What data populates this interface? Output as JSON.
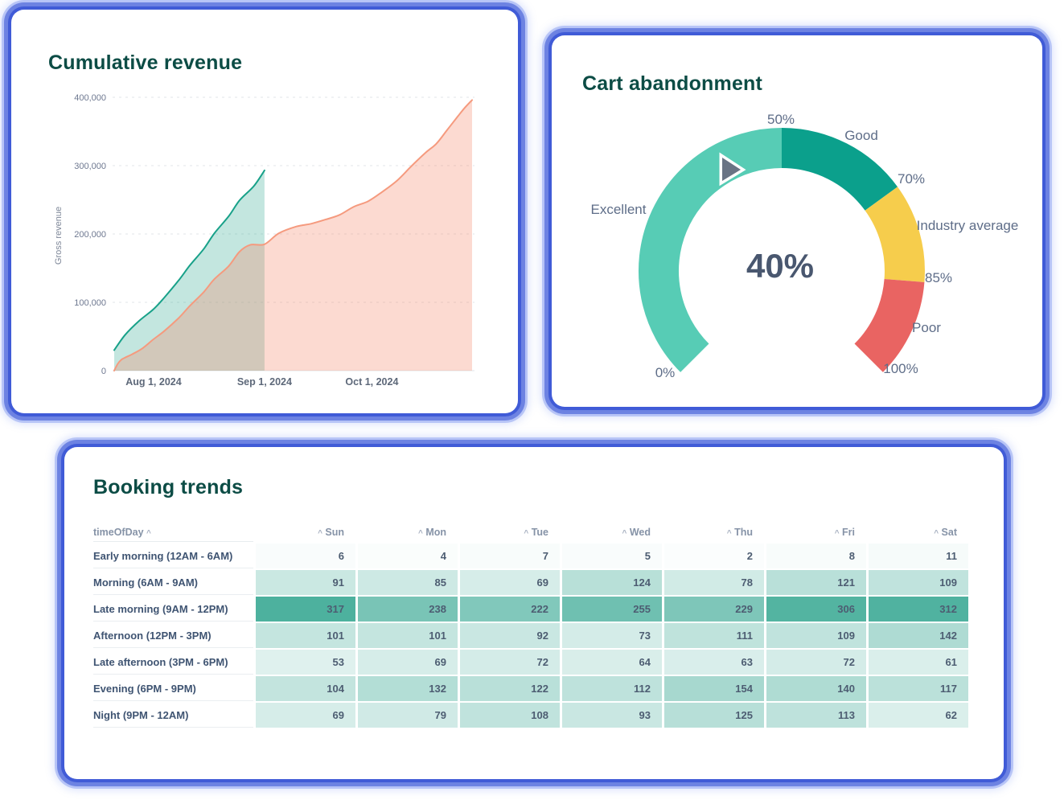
{
  "cards": [
    {
      "id": "revenue",
      "title": "Cumulative revenue"
    },
    {
      "id": "gauge",
      "title": "Cart abandonment"
    },
    {
      "id": "booking",
      "title": "Booking trends"
    }
  ],
  "chart_data": [
    {
      "type": "area",
      "title": "Cumulative revenue",
      "xlabel": "",
      "ylabel": "Gross revenue",
      "ylim": [
        0,
        400000
      ],
      "grid": "dashed-horizontal",
      "y_ticks": [
        {
          "value": 0,
          "label": "0"
        },
        {
          "value": 100000,
          "label": "100,000"
        },
        {
          "value": 200000,
          "label": "200,000"
        },
        {
          "value": 300000,
          "label": "300,000"
        },
        {
          "value": 400000,
          "label": "400,000"
        }
      ],
      "x_range_days": [
        0,
        100
      ],
      "x_ticks": [
        {
          "day": 11,
          "label": "Aug 1, 2024"
        },
        {
          "day": 42,
          "label": "Sep 1, 2024"
        },
        {
          "day": 72,
          "label": "Oct 1, 2024"
        }
      ],
      "series": [
        {
          "name": "current-period-cumulative",
          "color": "#18a189",
          "fill": "rgba(38,166,139,0.28)",
          "points": [
            [
              0,
              30000
            ],
            [
              3,
              52000
            ],
            [
              7,
              73000
            ],
            [
              11,
              90000
            ],
            [
              14,
              107000
            ],
            [
              18,
              132000
            ],
            [
              21,
              153000
            ],
            [
              25,
              178000
            ],
            [
              28,
              201000
            ],
            [
              32,
              226000
            ],
            [
              35,
              249000
            ],
            [
              39,
              270000
            ],
            [
              42,
              293000
            ]
          ]
        },
        {
          "name": "previous-period-cumulative",
          "color": "#f59a7e",
          "fill": "rgba(244,134,102,0.30)",
          "points": [
            [
              0,
              0
            ],
            [
              1,
              10000
            ],
            [
              2,
              16000
            ],
            [
              3,
              19000
            ],
            [
              5,
              24000
            ],
            [
              8,
              33000
            ],
            [
              11,
              46000
            ],
            [
              14,
              58000
            ],
            [
              18,
              77000
            ],
            [
              21,
              94000
            ],
            [
              25,
              115000
            ],
            [
              28,
              134000
            ],
            [
              32,
              153000
            ],
            [
              35,
              174000
            ],
            [
              38,
              184000
            ],
            [
              42,
              185000
            ],
            [
              46,
              201000
            ],
            [
              51,
              211000
            ],
            [
              55,
              215000
            ],
            [
              59,
              221000
            ],
            [
              63,
              228000
            ],
            [
              67,
              240000
            ],
            [
              71,
              248000
            ],
            [
              75,
              262000
            ],
            [
              79,
              278000
            ],
            [
              83,
              299000
            ],
            [
              87,
              319000
            ],
            [
              90,
              332000
            ],
            [
              93,
              352000
            ],
            [
              96,
              372000
            ],
            [
              98,
              385000
            ],
            [
              100,
              396000
            ]
          ]
        }
      ]
    },
    {
      "type": "gauge",
      "title": "Cart abandonment",
      "value": 40,
      "display_value": "40%",
      "min": 0,
      "max": 100,
      "needle_color": "#697384",
      "segments": [
        {
          "label": "Excellent",
          "from": 0,
          "to": 50,
          "color": "#57ccb5"
        },
        {
          "label": "Good",
          "from": 50,
          "to": 70,
          "color": "#0ba08c"
        },
        {
          "label": "Industry average",
          "from": 70,
          "to": 85,
          "color": "#f6cd4c"
        },
        {
          "label": "Poor",
          "from": 85,
          "to": 100,
          "color": "#e96462"
        }
      ],
      "tick_labels": [
        "0%",
        "50%",
        "70%",
        "85%",
        "100%"
      ]
    },
    {
      "type": "heatmap",
      "title": "Booking trends",
      "row_header": "timeOfDay",
      "columns": [
        "Sun",
        "Mon",
        "Tue",
        "Wed",
        "Thu",
        "Fri",
        "Sat"
      ],
      "rows": [
        {
          "label": "Early morning (12AM - 6AM)",
          "values": [
            6,
            4,
            7,
            5,
            2,
            8,
            11
          ]
        },
        {
          "label": "Morning (6AM - 9AM)",
          "values": [
            91,
            85,
            69,
            124,
            78,
            121,
            109
          ]
        },
        {
          "label": "Late morning (9AM - 12PM)",
          "values": [
            317,
            238,
            222,
            255,
            229,
            306,
            312
          ]
        },
        {
          "label": "Afternoon (12PM - 3PM)",
          "values": [
            101,
            101,
            92,
            73,
            111,
            109,
            142
          ]
        },
        {
          "label": "Late afternoon (3PM - 6PM)",
          "values": [
            53,
            69,
            72,
            64,
            63,
            72,
            61
          ]
        },
        {
          "label": "Evening (6PM - 9PM)",
          "values": [
            104,
            132,
            122,
            112,
            154,
            140,
            117
          ]
        },
        {
          "label": "Night (9PM - 12AM)",
          "values": [
            69,
            79,
            108,
            93,
            125,
            113,
            62
          ]
        }
      ],
      "color_scale": {
        "min_color": "#fbfdfd",
        "max_color": "#4db19e"
      }
    }
  ]
}
